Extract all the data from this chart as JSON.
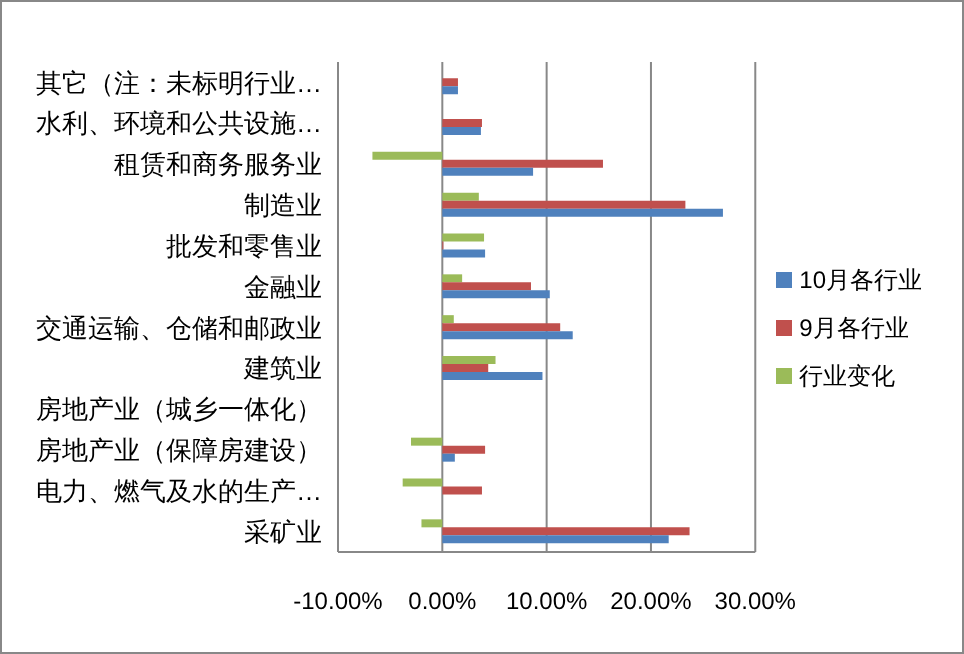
{
  "chart_data": {
    "type": "bar",
    "orientation": "horizontal",
    "categories": [
      "其它（注：未标明行业…",
      "水利、环境和公共设施…",
      "租赁和商务服务业",
      "制造业",
      "批发和零售业",
      "金融业",
      "交通运输、仓储和邮政业",
      "建筑业",
      "房地产业（城乡一体化）",
      "房地产业（保障房建设）",
      "电力、燃气及水的生产…",
      "采矿业"
    ],
    "series": [
      {
        "name": "行业变化",
        "color": "#9bbb59",
        "values": [
          null,
          null,
          -6.7,
          3.5,
          4.0,
          1.9,
          1.1,
          5.1,
          null,
          -3.0,
          -3.8,
          -2.0
        ]
      },
      {
        "name": "9月各行业",
        "color": "#c0504d",
        "values": [
          1.5,
          3.8,
          15.4,
          23.3,
          0.1,
          8.5,
          11.3,
          4.4,
          null,
          4.1,
          3.8,
          23.7
        ]
      },
      {
        "name": "10月各行业",
        "color": "#4f81bd",
        "values": [
          1.5,
          3.7,
          8.7,
          26.9,
          4.1,
          10.3,
          12.5,
          9.6,
          null,
          1.2,
          null,
          21.7
        ]
      }
    ],
    "xlim": [
      -10,
      30
    ],
    "xticks": [
      {
        "value": -10,
        "label": "-10.00%"
      },
      {
        "value": 0,
        "label": "0.00%"
      },
      {
        "value": 10,
        "label": "10.00%"
      },
      {
        "value": 20,
        "label": "20.00%"
      },
      {
        "value": 30,
        "label": "30.00%"
      }
    ],
    "grid": "x",
    "legend": "right"
  }
}
